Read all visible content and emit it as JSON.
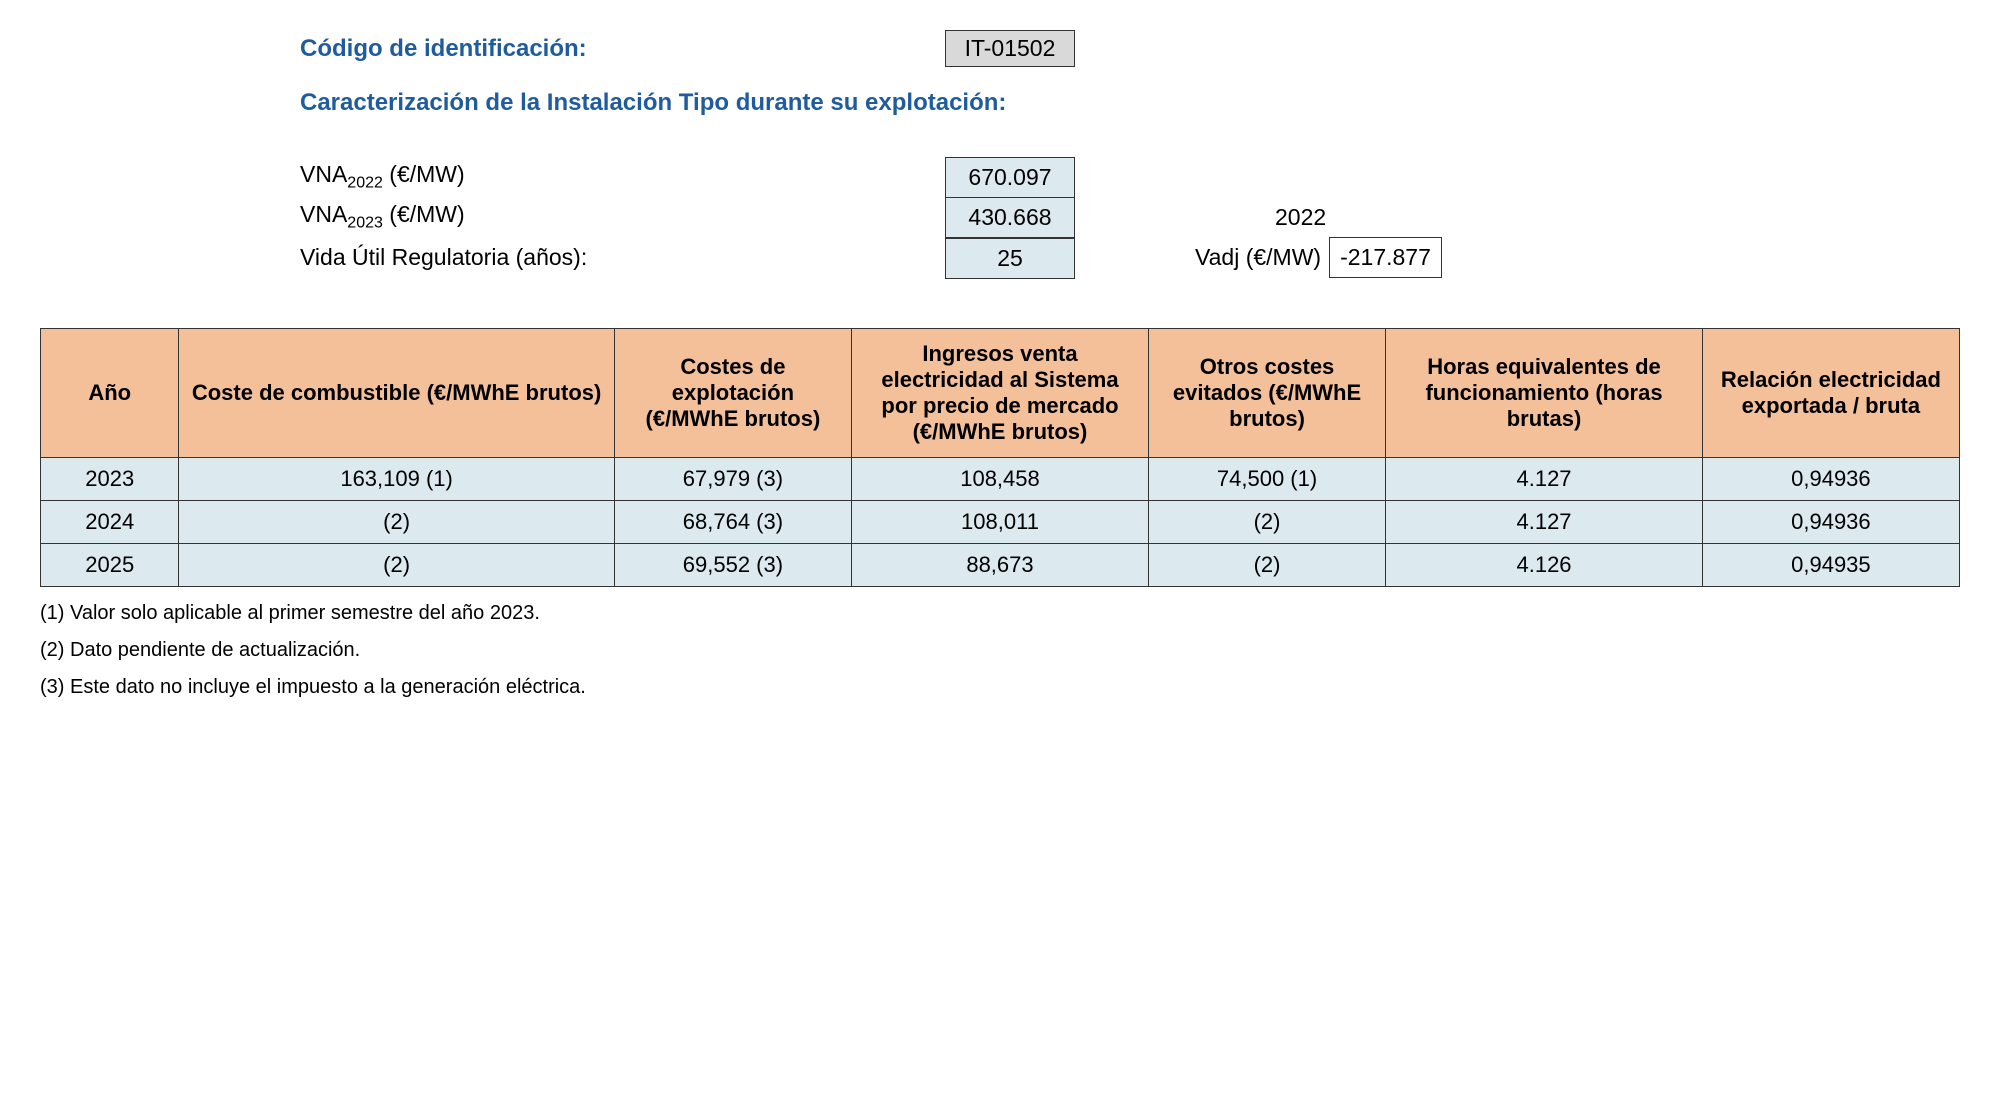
{
  "header": {
    "code_label": "Código de identificación:",
    "code_value": "IT-01502",
    "subtitle": "Caracterización de la Instalación Tipo durante su explotación:"
  },
  "params": {
    "vna2022_label_prefix": "VNA",
    "vna2022_sub": "2022",
    "vna2022_unit": " (€/MW)",
    "vna2022_value": "670.097",
    "vna2023_label_prefix": "VNA",
    "vna2023_sub": "2023",
    "vna2023_unit": " (€/MW)",
    "vna2023_value": "430.668",
    "year_right": "2022",
    "vida_label": "Vida Útil Regulatoria (años):",
    "vida_value": "25",
    "vadj_label": "Vadj (€/MW)",
    "vadj_value": "-217.877"
  },
  "table": {
    "headers": {
      "ano": "Año",
      "combustible": "Coste de combustible (€/MWhE brutos)",
      "costes": "Costes de explotación (€/MWhE brutos)",
      "ingresos": "Ingresos venta electricidad al Sistema por precio de mercado (€/MWhE brutos)",
      "otros": "Otros costes evitados (€/MWhE brutos)",
      "horas": "Horas equivalentes de funcionamiento (horas brutas)",
      "relacion": "Relación electricidad exportada / bruta"
    },
    "rows": [
      {
        "ano": "2023",
        "combustible": "163,109 (1)",
        "costes": "67,979 (3)",
        "ingresos": "108,458",
        "otros": "74,500 (1)",
        "horas": "4.127",
        "relacion": "0,94936"
      },
      {
        "ano": "2024",
        "combustible": "(2)",
        "costes": "68,764 (3)",
        "ingresos": "108,011",
        "otros": "(2)",
        "horas": "4.127",
        "relacion": "0,94936"
      },
      {
        "ano": "2025",
        "combustible": "(2)",
        "costes": "69,552 (3)",
        "ingresos": "88,673",
        "otros": "(2)",
        "horas": "4.126",
        "relacion": "0,94935"
      }
    ]
  },
  "footnotes": {
    "n1": "(1) Valor solo aplicable al primer semestre del año 2023.",
    "n2": "(2) Dato pendiente de actualización.",
    "n3": "(3) Este dato no incluye el impuesto a la generación eléctrica."
  },
  "style": {
    "header_color": "#f4c09a",
    "cell_color": "#dce9ef",
    "code_box_color": "#d9d9d9",
    "label_color": "#1f5c9e",
    "border_color": "#333333"
  }
}
